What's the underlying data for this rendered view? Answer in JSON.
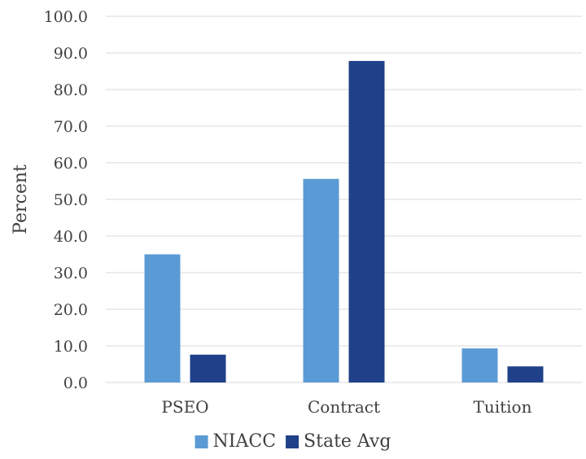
{
  "chart_data": {
    "type": "bar",
    "title": "",
    "xlabel": "",
    "ylabel": "Percent",
    "categories": [
      "PSEO",
      "Contract",
      "Tuition"
    ],
    "series": [
      {
        "name": "NIACC",
        "values": [
          35.0,
          55.6,
          9.3
        ],
        "color": "#5b9bd5"
      },
      {
        "name": "State Avg",
        "values": [
          7.6,
          87.8,
          4.4
        ],
        "color": "#1f4189"
      }
    ],
    "ylim": [
      0,
      100
    ],
    "yticks": [
      "0.0",
      "10.0",
      "20.0",
      "30.0",
      "40.0",
      "50.0",
      "60.0",
      "70.0",
      "80.0",
      "90.0",
      "100.0"
    ],
    "grid": true,
    "legend_position": "bottom"
  }
}
